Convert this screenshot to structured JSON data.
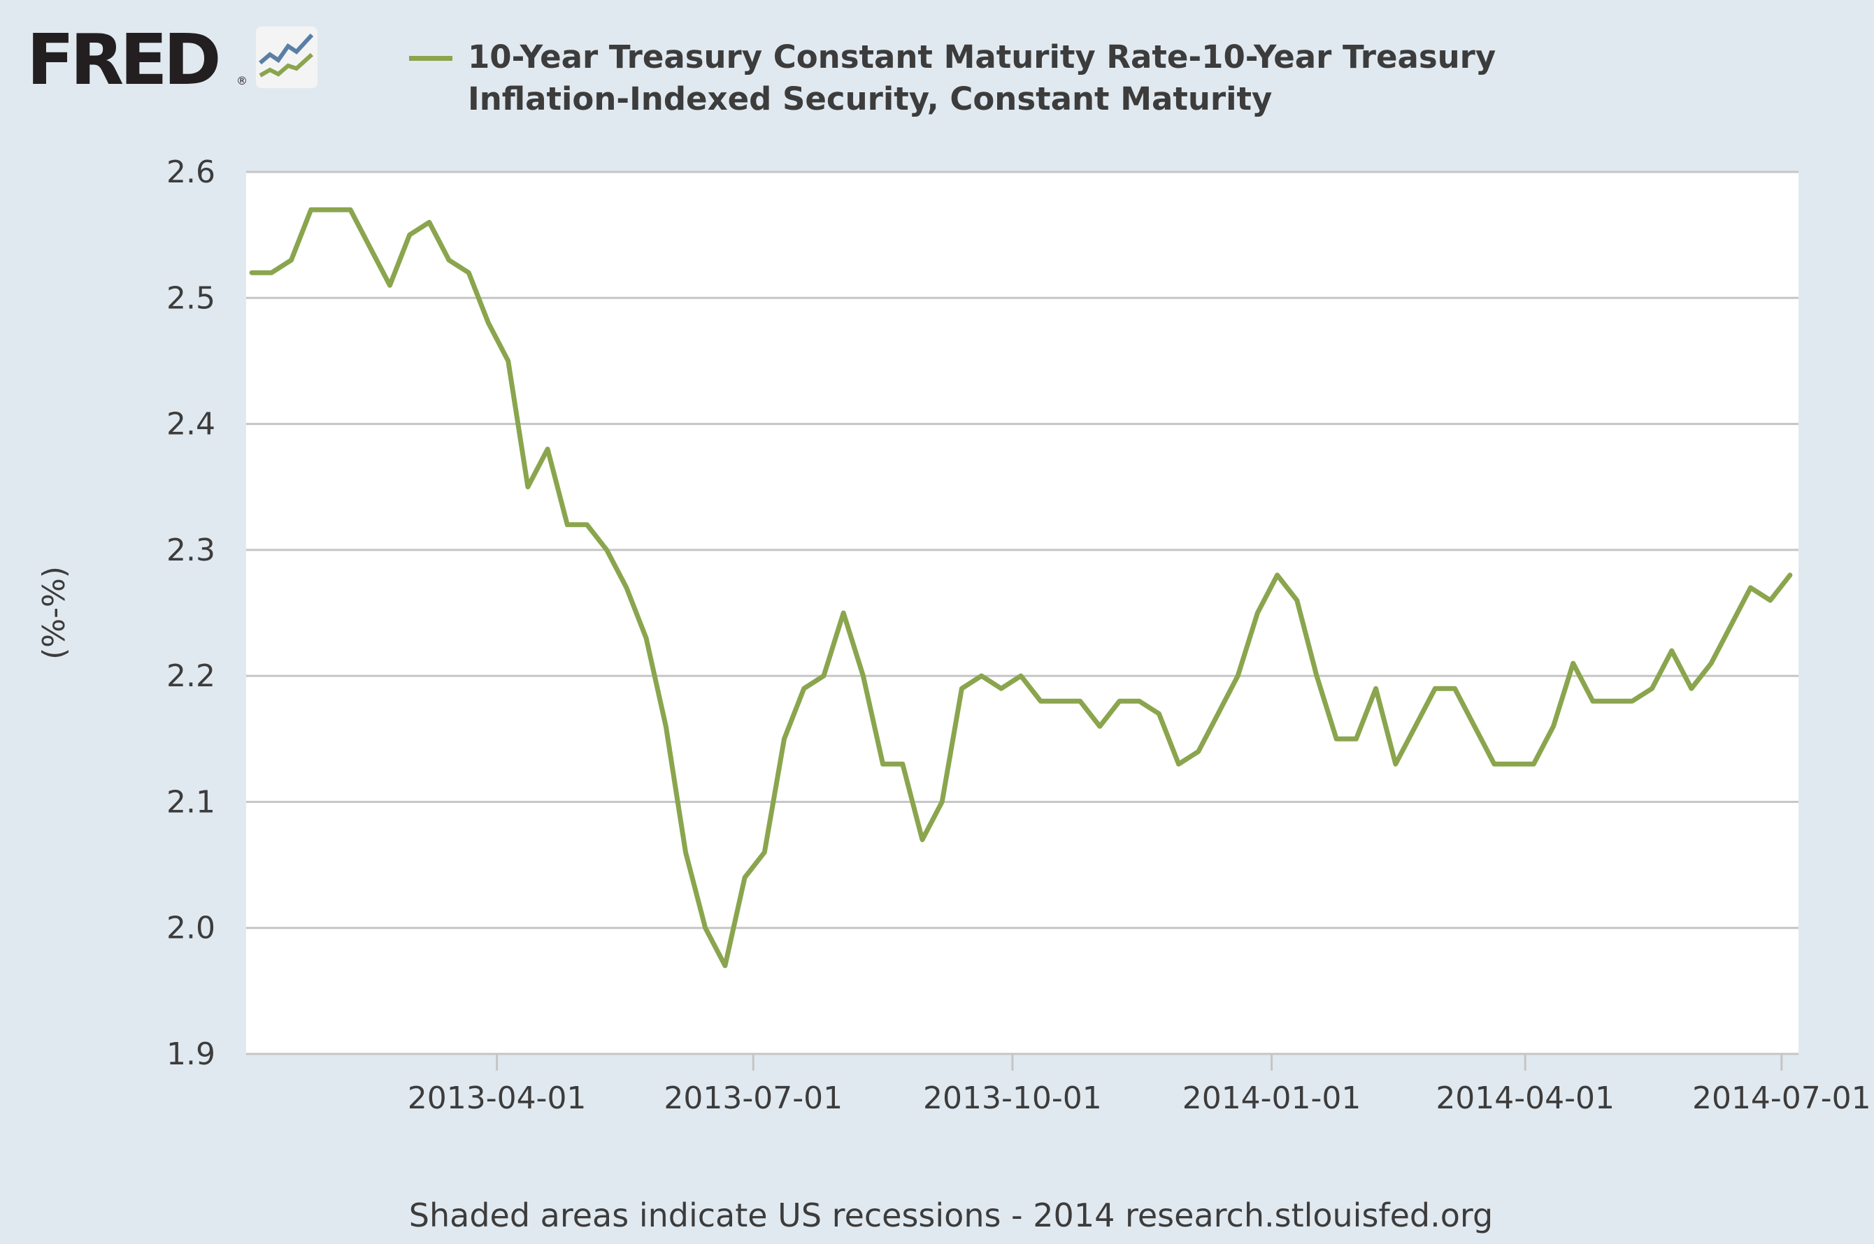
{
  "brand": {
    "name": "FRED",
    "registered": "®",
    "logo_icon": "fred-chart-icon"
  },
  "colors": {
    "background": "#e1e9f0",
    "plot_background": "#ffffff",
    "series": "#8aa54d",
    "grid": "#c5c5c5",
    "text": "#3c3c3c"
  },
  "footer": "Shaded areas indicate US recessions - 2014 research.stlouisfed.org",
  "chart_data": {
    "type": "line",
    "title": "",
    "xlabel": "",
    "ylabel": "(%-%)",
    "ylim": [
      1.9,
      2.6
    ],
    "yticks": [
      "1.9",
      "2.0",
      "2.1",
      "2.2",
      "2.3",
      "2.4",
      "2.5",
      "2.6"
    ],
    "xlim": [
      "2013-01-02",
      "2014-07-07"
    ],
    "xticks": [
      "2013-04-01",
      "2013-07-01",
      "2013-10-01",
      "2014-01-01",
      "2014-04-01",
      "2014-07-01"
    ],
    "grid": true,
    "legend_position": "top",
    "series": [
      {
        "name": "10-Year Treasury Constant Maturity Rate-10-Year Treasury Inflation-Indexed Security, Constant Maturity",
        "color": "#8aa54d",
        "points": [
          [
            "2013-01-04",
            2.52
          ],
          [
            "2013-01-11",
            2.52
          ],
          [
            "2013-01-18",
            2.53
          ],
          [
            "2013-01-25",
            2.57
          ],
          [
            "2013-02-01",
            2.57
          ],
          [
            "2013-02-08",
            2.57
          ],
          [
            "2013-02-15",
            2.54
          ],
          [
            "2013-02-22",
            2.51
          ],
          [
            "2013-03-01",
            2.55
          ],
          [
            "2013-03-08",
            2.56
          ],
          [
            "2013-03-15",
            2.53
          ],
          [
            "2013-03-22",
            2.52
          ],
          [
            "2013-03-29",
            2.48
          ],
          [
            "2013-04-05",
            2.45
          ],
          [
            "2013-04-12",
            2.35
          ],
          [
            "2013-04-19",
            2.38
          ],
          [
            "2013-04-26",
            2.32
          ],
          [
            "2013-05-03",
            2.32
          ],
          [
            "2013-05-10",
            2.3
          ],
          [
            "2013-05-17",
            2.27
          ],
          [
            "2013-05-24",
            2.23
          ],
          [
            "2013-05-31",
            2.16
          ],
          [
            "2013-06-07",
            2.06
          ],
          [
            "2013-06-14",
            2.0
          ],
          [
            "2013-06-21",
            1.97
          ],
          [
            "2013-06-28",
            2.04
          ],
          [
            "2013-07-05",
            2.06
          ],
          [
            "2013-07-12",
            2.15
          ],
          [
            "2013-07-19",
            2.19
          ],
          [
            "2013-07-26",
            2.2
          ],
          [
            "2013-08-02",
            2.25
          ],
          [
            "2013-08-09",
            2.2
          ],
          [
            "2013-08-16",
            2.13
          ],
          [
            "2013-08-23",
            2.13
          ],
          [
            "2013-08-30",
            2.07
          ],
          [
            "2013-09-06",
            2.1
          ],
          [
            "2013-09-13",
            2.19
          ],
          [
            "2013-09-20",
            2.2
          ],
          [
            "2013-09-27",
            2.19
          ],
          [
            "2013-10-04",
            2.2
          ],
          [
            "2013-10-11",
            2.18
          ],
          [
            "2013-10-18",
            2.18
          ],
          [
            "2013-10-25",
            2.18
          ],
          [
            "2013-11-01",
            2.16
          ],
          [
            "2013-11-08",
            2.18
          ],
          [
            "2013-11-15",
            2.18
          ],
          [
            "2013-11-22",
            2.17
          ],
          [
            "2013-11-29",
            2.13
          ],
          [
            "2013-12-06",
            2.14
          ],
          [
            "2013-12-13",
            2.17
          ],
          [
            "2013-12-20",
            2.2
          ],
          [
            "2013-12-27",
            2.25
          ],
          [
            "2014-01-03",
            2.28
          ],
          [
            "2014-01-10",
            2.26
          ],
          [
            "2014-01-17",
            2.2
          ],
          [
            "2014-01-24",
            2.15
          ],
          [
            "2014-01-31",
            2.15
          ],
          [
            "2014-02-07",
            2.19
          ],
          [
            "2014-02-14",
            2.13
          ],
          [
            "2014-02-21",
            2.16
          ],
          [
            "2014-02-28",
            2.19
          ],
          [
            "2014-03-07",
            2.19
          ],
          [
            "2014-03-14",
            2.16
          ],
          [
            "2014-03-21",
            2.13
          ],
          [
            "2014-03-28",
            2.13
          ],
          [
            "2014-04-04",
            2.13
          ],
          [
            "2014-04-11",
            2.16
          ],
          [
            "2014-04-18",
            2.21
          ],
          [
            "2014-04-25",
            2.18
          ],
          [
            "2014-05-02",
            2.18
          ],
          [
            "2014-05-09",
            2.18
          ],
          [
            "2014-05-16",
            2.19
          ],
          [
            "2014-05-23",
            2.22
          ],
          [
            "2014-05-30",
            2.19
          ],
          [
            "2014-06-06",
            2.21
          ],
          [
            "2014-06-13",
            2.24
          ],
          [
            "2014-06-20",
            2.27
          ],
          [
            "2014-06-27",
            2.26
          ],
          [
            "2014-07-04",
            2.28
          ]
        ]
      }
    ]
  }
}
